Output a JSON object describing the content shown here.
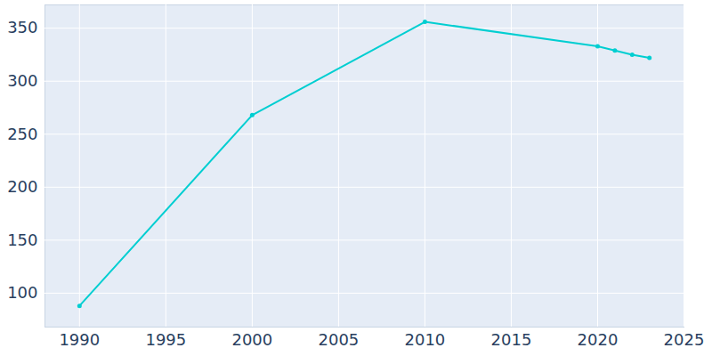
{
  "chart_data": {
    "type": "line",
    "x": [
      1990,
      2000,
      2010,
      2020,
      2021,
      2022,
      2023
    ],
    "values": [
      88,
      268,
      356,
      333,
      329,
      325,
      322
    ],
    "color": "#00ced1",
    "marker": "circle",
    "xlim": [
      1988,
      2025
    ],
    "xticks": [
      1990,
      1995,
      2000,
      2005,
      2010,
      2015,
      2020,
      2025
    ],
    "ylim": [
      68,
      372
    ],
    "yticks": [
      100,
      150,
      200,
      250,
      300,
      350
    ],
    "grid": true
  }
}
